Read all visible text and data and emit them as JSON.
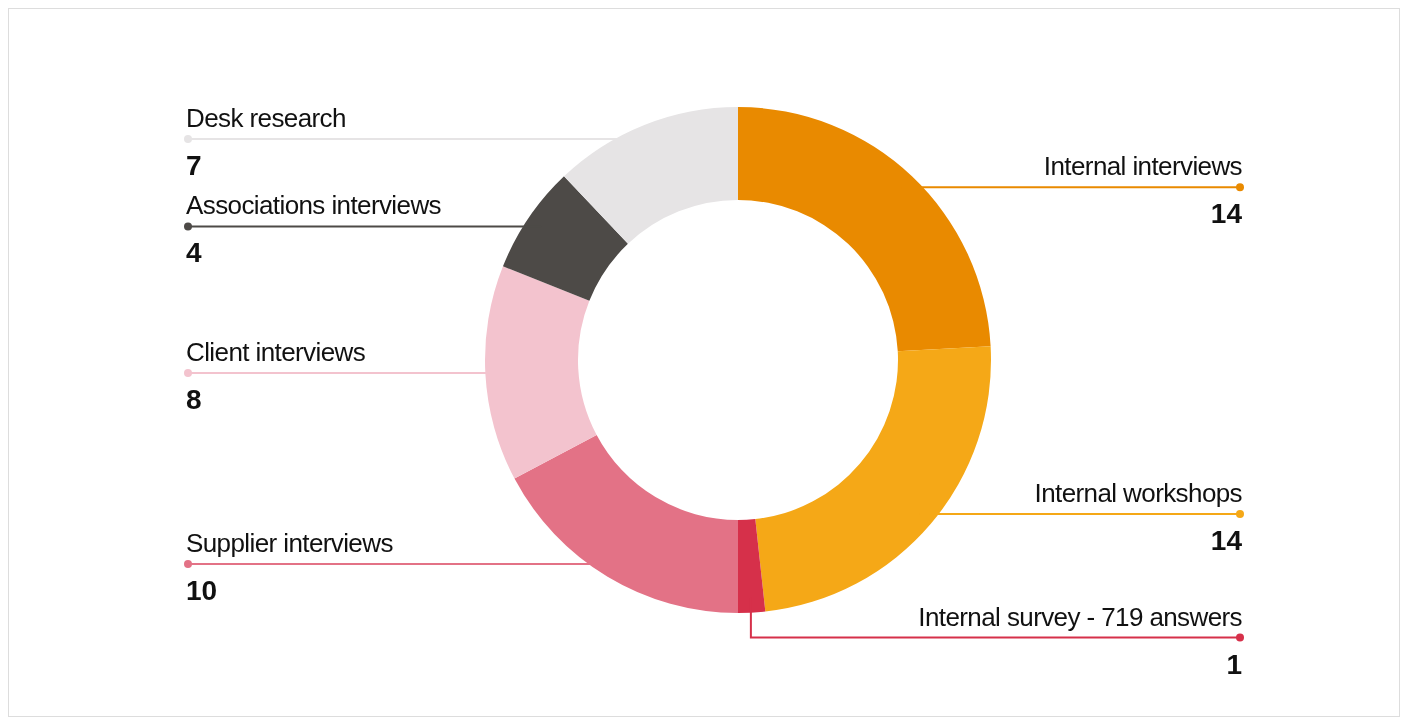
{
  "chart_data": {
    "type": "donut",
    "categories": [
      "Internal interviews",
      "Internal workshops",
      "Internal survey - 719 answers",
      "Supplier interviews",
      "Client interviews",
      "Associations interviews",
      "Desk research"
    ],
    "values": [
      14,
      14,
      1,
      10,
      8,
      4,
      7
    ],
    "colors": [
      "#e98a00",
      "#f5a817",
      "#d6304a",
      "#e37286",
      "#f3c3ce",
      "#4d4a47",
      "#e6e4e5"
    ],
    "data_labels": true
  }
}
